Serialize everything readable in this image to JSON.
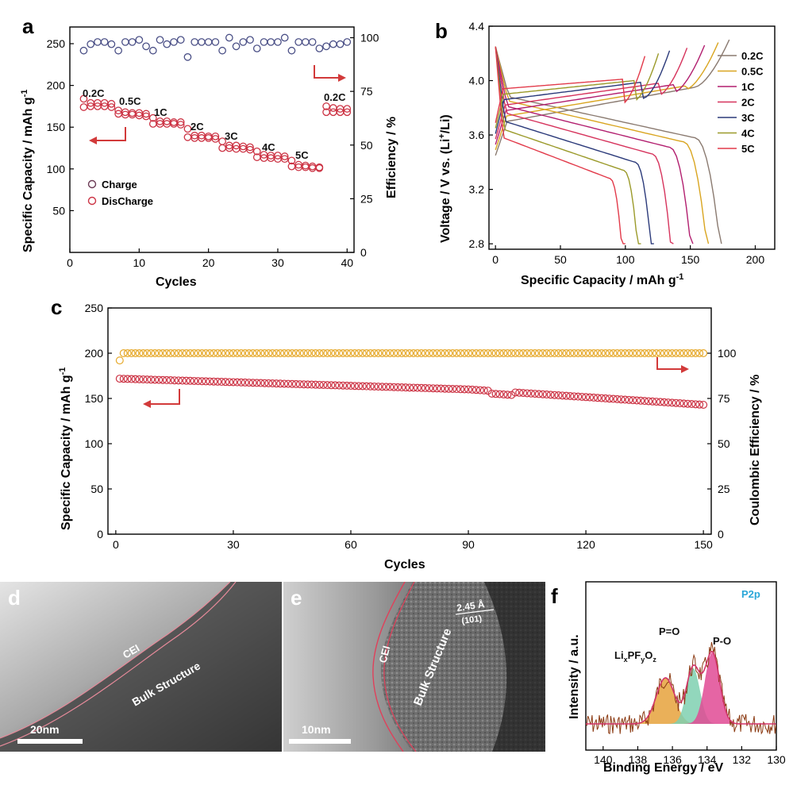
{
  "chart_data": [
    {
      "panel": "a",
      "type": "scatter",
      "xlabel": "Cycles",
      "ylabel": "Specific Capacity / mAh g",
      "ylabel_sup": "-1",
      "y2label": "Efficiency / %",
      "xlim": [
        0,
        41
      ],
      "ylim": [
        0,
        270
      ],
      "y2lim": [
        0,
        105
      ],
      "xticks": [
        "0",
        "10",
        "20",
        "30",
        "40"
      ],
      "yticks": [
        "50",
        "100",
        "150",
        "200",
        "250"
      ],
      "y2ticks": [
        "0",
        "25",
        "50",
        "75",
        "100"
      ],
      "legend": [
        "Charge",
        "DisCharge"
      ],
      "legend_position": "left",
      "rate_labels": [
        "0.2C",
        "0.5C",
        "1C",
        "2C",
        "3C",
        "4C",
        "5C",
        "0.2C"
      ],
      "series": [
        {
          "name": "Charge",
          "color": "#cc3344",
          "axis": "left",
          "x": [
            2,
            3,
            4,
            5,
            6,
            7,
            8,
            9,
            10,
            11,
            12,
            13,
            14,
            15,
            16,
            17,
            18,
            19,
            20,
            21,
            22,
            23,
            24,
            25,
            26,
            27,
            28,
            29,
            30,
            31,
            32,
            33,
            34,
            35,
            36,
            37,
            38,
            39,
            40
          ],
          "y": [
            184,
            179,
            179,
            179,
            178,
            170,
            168,
            167,
            167,
            166,
            161,
            157,
            157,
            156,
            156,
            148,
            140,
            140,
            139,
            139,
            133,
            128,
            128,
            127,
            126,
            121,
            117,
            116,
            116,
            115,
            110,
            105,
            104,
            103,
            102,
            175,
            173,
            172,
            172
          ]
        },
        {
          "name": "DisCharge",
          "color": "#cc3344",
          "axis": "left",
          "x": [
            2,
            3,
            4,
            5,
            6,
            7,
            8,
            9,
            10,
            11,
            12,
            13,
            14,
            15,
            16,
            17,
            18,
            19,
            20,
            21,
            22,
            23,
            24,
            25,
            26,
            27,
            28,
            29,
            30,
            31,
            32,
            33,
            34,
            35,
            36,
            37,
            38,
            39,
            40
          ],
          "y": [
            174,
            175,
            175,
            175,
            174,
            166,
            165,
            165,
            164,
            163,
            154,
            154,
            154,
            154,
            153,
            138,
            137,
            137,
            137,
            136,
            125,
            125,
            124,
            124,
            123,
            114,
            113,
            113,
            112,
            112,
            103,
            102,
            102,
            101,
            101,
            168,
            168,
            168,
            168
          ]
        },
        {
          "name": "Efficiency",
          "color": "#4a4f86",
          "axis": "right",
          "x": [
            2,
            3,
            4,
            5,
            6,
            7,
            8,
            9,
            10,
            11,
            12,
            13,
            14,
            15,
            16,
            17,
            18,
            19,
            20,
            21,
            22,
            23,
            24,
            25,
            26,
            27,
            28,
            29,
            30,
            31,
            32,
            33,
            34,
            35,
            36,
            37,
            38,
            39,
            40
          ],
          "y": [
            94,
            97,
            98,
            98,
            97,
            94,
            98,
            98,
            99,
            96,
            94,
            99,
            97,
            98,
            99,
            91,
            98,
            98,
            98,
            98,
            94,
            100,
            96,
            98,
            99,
            95,
            98,
            98,
            98,
            100,
            94,
            98,
            98,
            98,
            95,
            96,
            97,
            97,
            98
          ]
        }
      ]
    },
    {
      "panel": "b",
      "type": "line",
      "xlabel": "Specific Capacity / mAh g",
      "xlabel_sup": "-1",
      "ylabel": "Voltage / V vs. (Li",
      "ylabel_sup": "+",
      "ylabel_tail": "/Li)",
      "xlim": [
        -5,
        215
      ],
      "ylim": [
        2.76,
        4.4
      ],
      "xticks": [
        "0",
        "50",
        "100",
        "150",
        "200"
      ],
      "yticks": [
        "2.8",
        "3.2",
        "3.6",
        "4.0",
        "4.4"
      ],
      "legend_position": "right",
      "series": [
        {
          "name": "0.2C",
          "color": "#8a7a70",
          "capacity": 174,
          "plateau": 3.7
        },
        {
          "name": "0.5C",
          "color": "#d9a520",
          "capacity": 164,
          "plateau": 3.67
        },
        {
          "name": "1C",
          "color": "#b21f6f",
          "capacity": 152,
          "plateau": 3.63
        },
        {
          "name": "2C",
          "color": "#d6335c",
          "capacity": 137,
          "plateau": 3.58
        },
        {
          "name": "3C",
          "color": "#2b3a7a",
          "capacity": 122,
          "plateau": 3.52
        },
        {
          "name": "4C",
          "color": "#9b9a2a",
          "capacity": 112,
          "plateau": 3.46
        },
        {
          "name": "5C",
          "color": "#e23a4a",
          "capacity": 100,
          "plateau": 3.4
        }
      ]
    },
    {
      "panel": "c",
      "type": "scatter",
      "xlabel": "Cycles",
      "ylabel": "Specific Capacity / mAh g",
      "ylabel_sup": "-1",
      "y2label": "Coulombic Efficiency / %",
      "xlim": [
        -2,
        152
      ],
      "ylim": [
        0,
        250
      ],
      "y2lim": [
        0,
        125
      ],
      "xticks": [
        "0",
        "30",
        "60",
        "90",
        "120",
        "150"
      ],
      "yticks": [
        "0",
        "50",
        "100",
        "150",
        "200",
        "250"
      ],
      "y2ticks": [
        "0",
        "25",
        "50",
        "75",
        "100"
      ],
      "series": [
        {
          "name": "Specific Capacity",
          "color": "#cc3344",
          "axis": "left",
          "start": 172,
          "mid": 160,
          "end": 143
        },
        {
          "name": "Coulombic Efficiency",
          "color": "#e6a92b",
          "axis": "right",
          "first": 96,
          "value": 100
        }
      ]
    },
    {
      "panel": "f",
      "type": "line",
      "title": "P2p",
      "xlabel": "Binding Energy / eV",
      "ylabel": "Intensity / a.u.",
      "xlim": [
        141,
        130
      ],
      "xticks": [
        "140",
        "138",
        "136",
        "134",
        "132",
        "130"
      ],
      "components": [
        {
          "name": "LixPFyOz",
          "center": 136.4,
          "color": "#e6a23c"
        },
        {
          "name": "P=O",
          "center": 134.8,
          "color": "#7fd0b0"
        },
        {
          "name": "P-O",
          "center": 133.7,
          "color": "#e04a94"
        }
      ]
    }
  ],
  "panels": {
    "a": {
      "letter": "a"
    },
    "b": {
      "letter": "b"
    },
    "c": {
      "letter": "c"
    },
    "d": {
      "letter": "d",
      "cei": "CEI",
      "bulk": "Bulk Structure",
      "scale": "20nm"
    },
    "e": {
      "letter": "e",
      "cei": "CEI",
      "bulk": "Bulk Structure",
      "scale": "10nm",
      "spacing": "2.45 Å",
      "plane": "(101)"
    },
    "f": {
      "letter": "f",
      "label_li": "Li",
      "label_x": "x",
      "label_pf": "PF",
      "label_y": "y",
      "label_o": "O",
      "label_z": "z",
      "label_po_dbl": "P=O",
      "label_po": "P-O"
    }
  },
  "colors": {
    "capacity_marker": "#cc3344",
    "efficiency_a": "#4a4f86",
    "efficiency_c": "#e6a92b",
    "arrow": "#d23a3a",
    "xps_raw": "#8b3a12",
    "xps_title": "#2aa7d8"
  }
}
